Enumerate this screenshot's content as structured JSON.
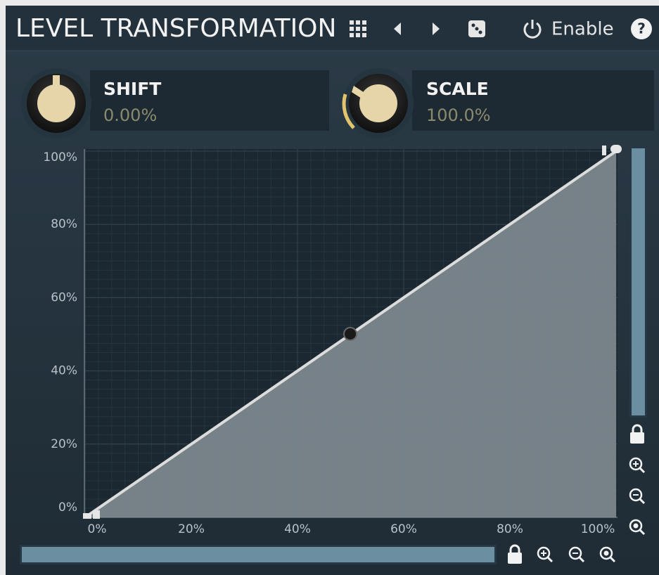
{
  "header": {
    "title": "LEVEL TRANSFORMATION",
    "enable": "Enable",
    "help": "?"
  },
  "knobs": [
    {
      "label": "SHIFT",
      "value": "0.00%"
    },
    {
      "label": "SCALE",
      "value": "100.0%"
    }
  ],
  "graph": {
    "xticks": [
      {
        "value": 0,
        "label": "0%"
      },
      {
        "value": 20,
        "label": "20%"
      },
      {
        "value": 40,
        "label": "40%"
      },
      {
        "value": 60,
        "label": "60%"
      },
      {
        "value": 80,
        "label": "80%"
      },
      {
        "value": 100,
        "label": "100%"
      }
    ],
    "yticks": [
      {
        "value": 0,
        "label": "0%"
      },
      {
        "value": 20,
        "label": "20%"
      },
      {
        "value": 40,
        "label": "40%"
      },
      {
        "value": 60,
        "label": "60%"
      },
      {
        "value": 80,
        "label": "80%"
      },
      {
        "value": 100,
        "label": "100%"
      }
    ]
  }
}
